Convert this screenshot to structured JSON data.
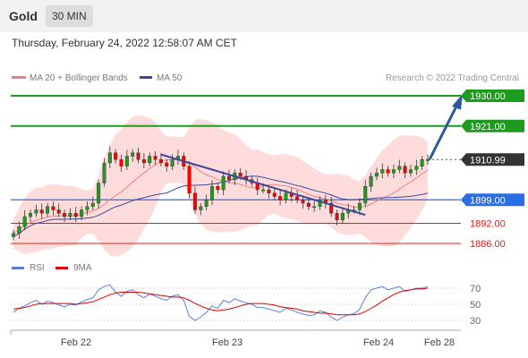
{
  "header": {
    "title": "Gold",
    "timeframe": "30 MIN",
    "datetime": "Thursday, February 24, 2022 12:58:07 AM CET"
  },
  "legend": {
    "ma20": "MA 20 + Bollinger Bands",
    "ma50": "MA 50",
    "credit": "Research © 2022 Trading Central"
  },
  "rsi_legend": {
    "rsi": "RSI",
    "ma9": "9MA"
  },
  "colors": {
    "up": "#1e9b1e",
    "down": "#ff0000",
    "support": "#e01b1b",
    "pivot": "#2a6ee6",
    "last": "#333333",
    "ma20": "#f08080",
    "ma50": "#3a4a9a",
    "band": "#ffd0d0",
    "trend": "#3a4a9a",
    "arrow": "#2c5aa0"
  },
  "chart_data": [
    {
      "type": "line",
      "title": "",
      "ylim": [
        1880,
        1935
      ],
      "x_ticks": [
        "Feb 22",
        "Feb 23",
        "Feb 24",
        "Feb 28"
      ],
      "levels": [
        {
          "value": 1930.0,
          "label": "1930.00",
          "kind": "resistance"
        },
        {
          "value": 1921.0,
          "label": "1921.00",
          "kind": "resistance"
        },
        {
          "value": 1910.99,
          "label": "1910.99",
          "kind": "last"
        },
        {
          "value": 1899.0,
          "label": "1899.00",
          "kind": "pivot"
        },
        {
          "value": 1892.0,
          "label": "1892.00",
          "kind": "support"
        },
        {
          "value": 1886.0,
          "label": "1886.00",
          "kind": "support"
        }
      ],
      "price_series": [
        1889,
        1891,
        1894,
        1895,
        1896,
        1895,
        1897,
        1896,
        1895,
        1894,
        1895,
        1894,
        1896,
        1897,
        1898,
        1904,
        1910,
        1913,
        1911,
        1909,
        1912,
        1913,
        1911,
        1910,
        1912,
        1911,
        1910,
        1909,
        1911,
        1912,
        1909,
        1901,
        1896,
        1897,
        1899,
        1903,
        1902,
        1906,
        1905,
        1907,
        1906,
        1905,
        1904,
        1902,
        1902,
        1901,
        1900,
        1899,
        1901,
        1900,
        1899,
        1898,
        1897,
        1897,
        1899,
        1898,
        1895,
        1893,
        1895,
        1896,
        1896,
        1898,
        1903,
        1906,
        1907,
        1908,
        1907,
        1908,
        1909,
        1907,
        1908,
        1909,
        1911,
        1911
      ],
      "trendline": {
        "from": [
          56,
          1912.5
        ],
        "to": [
          78,
          1894.5
        ]
      },
      "forecast_arrow": {
        "from": [
          82,
          1911
        ],
        "to": [
          94,
          1929
        ]
      }
    },
    {
      "type": "line",
      "title": "",
      "ylim": [
        20,
        80
      ],
      "y_ticks": [
        "70",
        "50",
        "30"
      ],
      "rsi_series": [
        40,
        45,
        48,
        52,
        55,
        50,
        54,
        52,
        49,
        47,
        50,
        49,
        53,
        56,
        58,
        68,
        72,
        74,
        65,
        60,
        66,
        68,
        62,
        58,
        63,
        60,
        57,
        55,
        60,
        62,
        55,
        35,
        30,
        34,
        40,
        48,
        45,
        55,
        52,
        57,
        54,
        52,
        50,
        46,
        46,
        44,
        42,
        40,
        45,
        43,
        40,
        38,
        36,
        37,
        42,
        40,
        34,
        30,
        34,
        37,
        38,
        44,
        58,
        68,
        70,
        72,
        68,
        70,
        72,
        66,
        68,
        70,
        70,
        72
      ],
      "ma9_series": [
        44,
        45,
        46,
        48,
        50,
        51,
        51,
        51,
        51,
        51,
        51,
        50,
        51,
        52,
        53,
        56,
        59,
        62,
        64,
        65,
        65,
        65,
        65,
        64,
        63,
        62,
        61,
        60,
        59,
        59,
        58,
        55,
        51,
        48,
        45,
        43,
        42,
        43,
        44,
        46,
        48,
        50,
        51,
        51,
        51,
        50,
        49,
        47,
        46,
        45,
        44,
        42,
        41,
        40,
        39,
        39,
        38,
        37,
        37,
        37,
        37,
        38,
        41,
        45,
        49,
        54,
        58,
        62,
        65,
        67,
        68,
        69,
        69,
        70
      ]
    }
  ]
}
